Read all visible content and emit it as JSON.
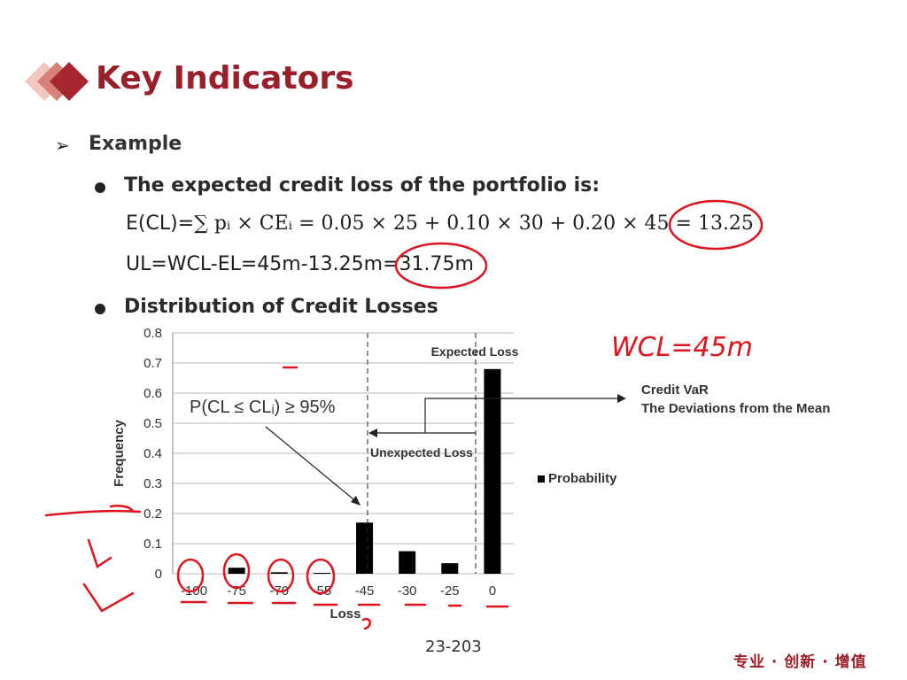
{
  "slide": {
    "title": "Key Indicators",
    "example_label": "Example",
    "bullet1": "The expected credit loss of the portfolio is:",
    "formula1_lhs": "E(CL)=",
    "formula1_rhs": "∑ pᵢ × CEᵢ = 0.05 × 25 + 0.10 × 30 + 0.20 × 45 = 13.25",
    "formula2": "UL=WCL-EL=45m-13.25m=31.75m",
    "bullet2": "Distribution of Credit Losses",
    "page_number": "23-203",
    "brand": "专业 · 创新 · 增值",
    "handwritten_note": "WCL=45m",
    "colors": {
      "title": "#9b1f2a",
      "annotation": "#e0141e",
      "bar": "#000000"
    }
  },
  "chart_data": {
    "type": "bar",
    "categories": [
      "-100",
      "-75",
      "-70",
      "-55",
      "-45",
      "-30",
      "-25",
      "0"
    ],
    "series": [
      {
        "name": "Probability",
        "values": [
          0.0,
          0.02,
          0.005,
          0.003,
          0.17,
          0.075,
          0.035,
          0.68
        ]
      }
    ],
    "xlabel": "Loss",
    "ylabel": "Frequency",
    "ylim": [
      0,
      0.8
    ],
    "yticks": [
      "0",
      "0.1",
      "0.2",
      "0.3",
      "0.4",
      "0.5",
      "0.6",
      "0.7",
      "0.8"
    ],
    "grid": true,
    "legend_position": "right",
    "annotations": {
      "expected_loss": "Expected Loss",
      "unexpected_loss": "Unexpected Loss",
      "confidence": "P(CL ≤ CLᵢ) ≥ 95%",
      "credit_var": "Credit VaR",
      "deviations": "The Deviations from the Mean"
    }
  }
}
